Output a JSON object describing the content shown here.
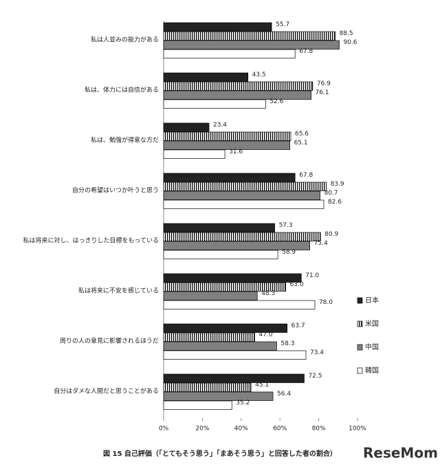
{
  "chart_data": {
    "type": "bar",
    "orientation": "horizontal",
    "caption": "図 15  自己評価（「とてもそう思う」「まあそう思う」と回答した者の割合）",
    "watermark": "ReseMom",
    "categories": [
      "私は人並みの能力がある",
      "私は、体力には自信がある",
      "私は、勉強が得意な方だ",
      "自分の希望はいつか叶うと思う",
      "私は将来に対し、はっきりした目標をもっている",
      "私は将来に不安を感じている",
      "周りの人の意見に影響されるほうだ",
      "自分はダメな人間だと思うことがある"
    ],
    "series": [
      {
        "name": "日本",
        "color": "#222222",
        "values": [
          55.7,
          43.5,
          23.4,
          67.8,
          57.3,
          71.0,
          63.7,
          72.5
        ],
        "value_labels": [
          "55.7",
          "43.5",
          "23.4",
          "67.8",
          "57.3",
          "71.0",
          "63.7",
          "72.5"
        ]
      },
      {
        "name": "米国",
        "color": "#000000",
        "pattern": "vertical-lines",
        "values": [
          88.5,
          76.9,
          65.6,
          83.9,
          80.9,
          63.0,
          47.0,
          45.1
        ],
        "value_labels": [
          "88.5",
          "76.9",
          "65.6",
          "83.9",
          "80.9",
          "63.0",
          "47.0",
          "45.1"
        ]
      },
      {
        "name": "中国",
        "color": "#808080",
        "values": [
          90.6,
          76.1,
          65.1,
          80.7,
          75.4,
          48.3,
          58.3,
          56.4
        ],
        "value_labels": [
          "90.6",
          "76.1",
          "65.1",
          "80.7",
          "75.4",
          "48.3",
          "58.3",
          "56.4"
        ]
      },
      {
        "name": "韓国",
        "color": "#ffffff",
        "values": [
          67.8,
          52.6,
          31.6,
          82.6,
          58.9,
          78.0,
          73.4,
          35.2
        ],
        "value_labels": [
          "67.8",
          "52.6",
          "31.6",
          "82.6",
          "58.9",
          "78.0",
          "73.4",
          "35.2"
        ]
      }
    ],
    "xlim": [
      0,
      100
    ],
    "xticks": [
      {
        "value": 0,
        "label": "0%"
      },
      {
        "value": 20,
        "label": "20%"
      },
      {
        "value": 40,
        "label": "40%"
      },
      {
        "value": 60,
        "label": "60%"
      },
      {
        "value": 80,
        "label": "80%"
      },
      {
        "value": 100,
        "label": "100%"
      }
    ],
    "legend": "right"
  }
}
